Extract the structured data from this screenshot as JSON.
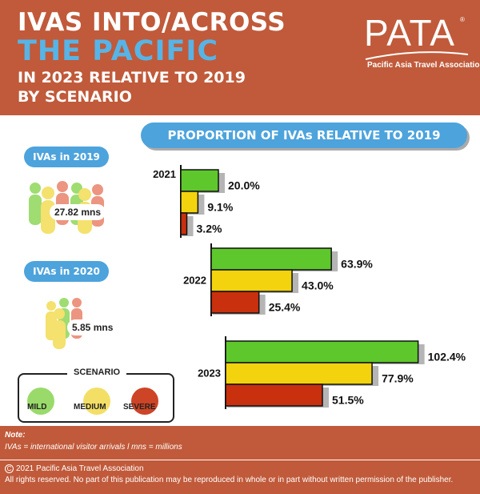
{
  "header": {
    "title_line1": "IVAS INTO/ACROSS",
    "title_line2": "THE PACIFIC",
    "title_line3": "IN 2023 RELATIVE TO 2019",
    "title_line4": "BY SCENARIO",
    "bg_color": "#c05a3a",
    "accent_color": "#57b4e6"
  },
  "logo": {
    "text": "PATA",
    "registered": "®",
    "subtitle": "Pacific Asia Travel Association"
  },
  "banner": {
    "text": "PROPORTION OF IVAs RELATIVE TO 2019"
  },
  "ivas_2019": {
    "label": "IVAs in 2019",
    "value": "27.82 mns"
  },
  "ivas_2020": {
    "label": "IVAs in 2020",
    "value": "5.85 mns"
  },
  "legend": {
    "title": "SCENARIO",
    "items": [
      {
        "label": "MILD",
        "color": "#5ec72c"
      },
      {
        "label": "MEDIUM",
        "color": "#f2d30e"
      },
      {
        "label": "SEVERE",
        "color": "#c8300e"
      }
    ]
  },
  "chart_data": {
    "type": "bar",
    "orientation": "horizontal",
    "title": "PROPORTION OF IVAs RELATIVE TO 2019",
    "categories": [
      "2021",
      "2022",
      "2023"
    ],
    "series": [
      {
        "name": "MILD",
        "color": "#5ec72c",
        "values": [
          20.0,
          63.9,
          102.4
        ]
      },
      {
        "name": "MEDIUM",
        "color": "#f2d30e",
        "values": [
          9.1,
          43.0,
          77.9
        ]
      },
      {
        "name": "SEVERE",
        "color": "#c8300e",
        "values": [
          3.2,
          25.4,
          51.5
        ]
      }
    ],
    "value_suffix": "%",
    "value_decimals": 1,
    "grid": false
  },
  "footer": {
    "note_title": "Note:",
    "note_text": "IVAs = international visitor arrivals l mns = millions",
    "copyright_symbol": "C",
    "copyright": "2021 Pacific Asia Travel Association",
    "rights": "All rights reserved. No part of this publication may be reproduced in whole or in part without written permission of the publisher."
  }
}
